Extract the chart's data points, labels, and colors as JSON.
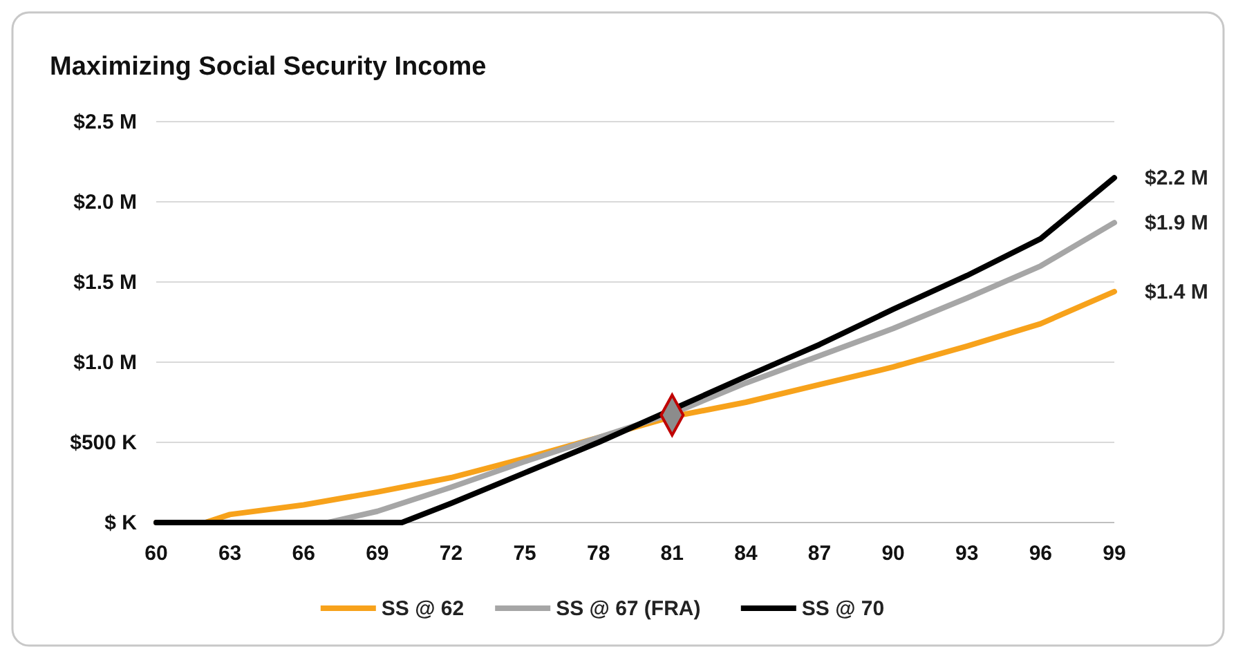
{
  "chart_data": {
    "type": "line",
    "title": "Maximizing Social Security Income",
    "x": [
      60,
      62,
      63,
      66,
      67,
      69,
      70,
      72,
      75,
      78,
      81,
      84,
      87,
      90,
      93,
      96,
      99
    ],
    "series": [
      {
        "name": "SS @ 62",
        "color": "#f7a21b",
        "values": [
          0,
          0,
          0.05,
          0.11,
          null,
          0.19,
          null,
          0.28,
          0.4,
          0.53,
          0.66,
          0.75,
          0.86,
          0.97,
          1.1,
          1.24,
          1.44
        ],
        "value_labels": [
          null,
          null,
          null,
          null,
          null,
          null,
          null,
          null,
          null,
          null,
          null,
          null,
          null,
          null,
          null,
          null,
          "$1.4 M"
        ]
      },
      {
        "name": "SS @ 67 (FRA)",
        "color": "#a6a6a6",
        "values": [
          0,
          null,
          null,
          0,
          0,
          0.07,
          null,
          0.22,
          0.38,
          0.53,
          0.68,
          0.87,
          1.04,
          1.21,
          1.4,
          1.6,
          1.87
        ],
        "value_labels": [
          null,
          null,
          null,
          null,
          null,
          null,
          null,
          null,
          null,
          null,
          null,
          null,
          null,
          null,
          null,
          null,
          "$1.9 M"
        ]
      },
      {
        "name": "SS @ 70",
        "color": "#000000",
        "values": [
          0,
          null,
          null,
          null,
          null,
          null,
          0,
          0.12,
          0.31,
          0.5,
          null,
          0.91,
          1.11,
          1.33,
          1.54,
          1.77,
          2.15
        ],
        "value_labels": [
          null,
          null,
          null,
          null,
          null,
          null,
          null,
          null,
          null,
          null,
          null,
          null,
          null,
          null,
          null,
          null,
          "$2.2 M"
        ]
      },
      {
        "type": "scatter",
        "x": [
          81
        ],
        "values": [
          0.67
        ],
        "color": "#8c8c8c",
        "marker": "diamond"
      }
    ],
    "xlim": [
      60,
      99
    ],
    "xticks": [
      60,
      63,
      66,
      69,
      72,
      75,
      78,
      81,
      84,
      87,
      90,
      93,
      96,
      99
    ],
    "ylim": [
      0,
      2.5
    ],
    "yticks": [
      {
        "value": 0,
        "label": "$ K"
      },
      {
        "value": 0.5,
        "label": "$500 K"
      },
      {
        "value": 1,
        "label": "$1.0 M"
      },
      {
        "value": 1.5,
        "label": "$1.5 M"
      },
      {
        "value": 2,
        "label": "$2.0 M"
      },
      {
        "value": 2.5,
        "label": "$2.5 M"
      }
    ],
    "grid": "y",
    "legend": "bottom",
    "marker": "none",
    "line_style": "solid"
  }
}
